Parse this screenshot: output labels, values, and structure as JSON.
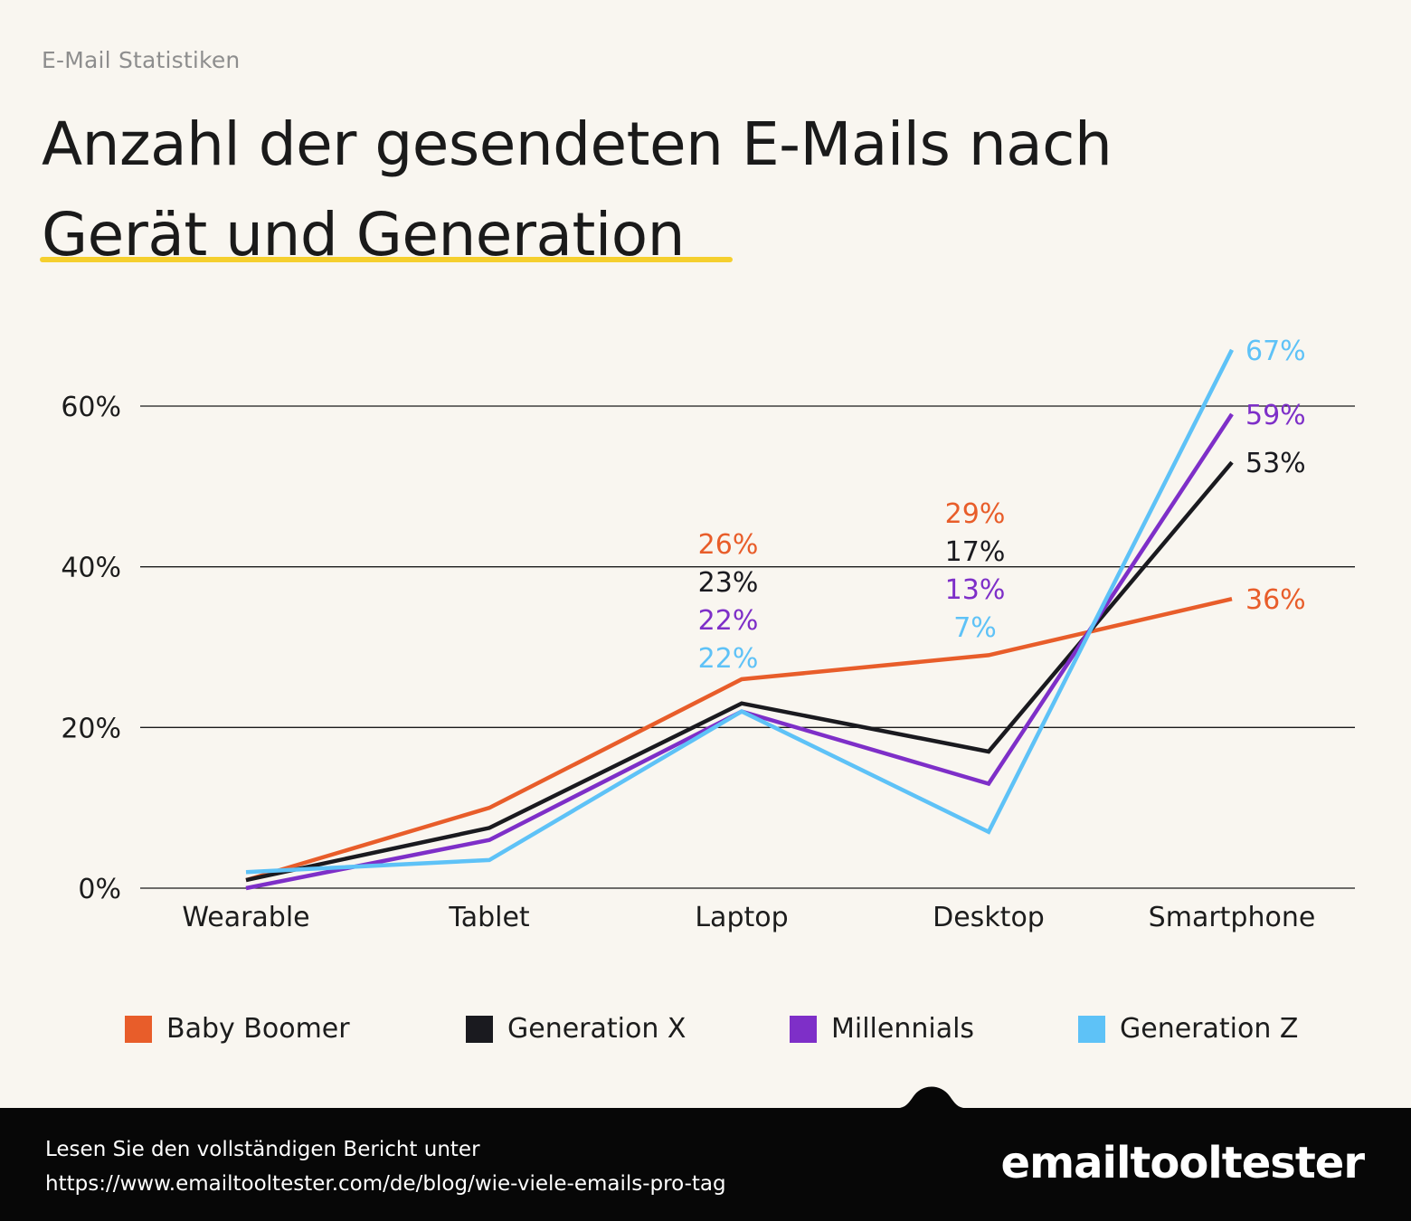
{
  "eyebrow": "E-Mail Statistiken",
  "title": {
    "line1": "Anzahl der gesendeten E-Mails nach",
    "line2": "Gerät und Generation"
  },
  "chart_data": {
    "type": "line",
    "categories": [
      "Wearable",
      "Tablet",
      "Laptop",
      "Desktop",
      "Smartphone"
    ],
    "ylim": [
      0,
      60
    ],
    "yticks": [
      0,
      20,
      40,
      60
    ],
    "ytick_labels": [
      "0%",
      "20%",
      "40%",
      "60%"
    ],
    "series": [
      {
        "name": "Baby Boomer",
        "color": "#e85d2a",
        "values": [
          1,
          10,
          26,
          29,
          36
        ]
      },
      {
        "name": "Generation X",
        "color": "#1a1a1f",
        "values": [
          1,
          7.5,
          23,
          17,
          53
        ]
      },
      {
        "name": "Millennials",
        "color": "#7e2fc8",
        "values": [
          0,
          6,
          22,
          13,
          59
        ]
      },
      {
        "name": "Generation Z",
        "color": "#5ec2f7",
        "values": [
          2,
          3.5,
          22,
          7,
          67
        ]
      }
    ],
    "annotations": {
      "Laptop": [
        "26%",
        "23%",
        "22%",
        "22%"
      ],
      "Desktop": [
        "29%",
        "17%",
        "13%",
        "7%"
      ],
      "Smartphone": [
        "36%",
        "53%",
        "59%",
        "67%"
      ]
    },
    "legend": "bottom"
  },
  "legend": {
    "items": [
      {
        "label": "Baby Boomer",
        "color": "#e85d2a"
      },
      {
        "label": "Generation X",
        "color": "#1a1a1f"
      },
      {
        "label": "Millennials",
        "color": "#7e2fc8"
      },
      {
        "label": "Generation Z",
        "color": "#5ec2f7"
      }
    ]
  },
  "footer": {
    "line1": "Lesen Sie den vollständigen Bericht unter",
    "line2": "https://www.emailtooltester.com/de/blog/wie-viele-emails-pro-tag",
    "brand": "emailtooltester"
  }
}
